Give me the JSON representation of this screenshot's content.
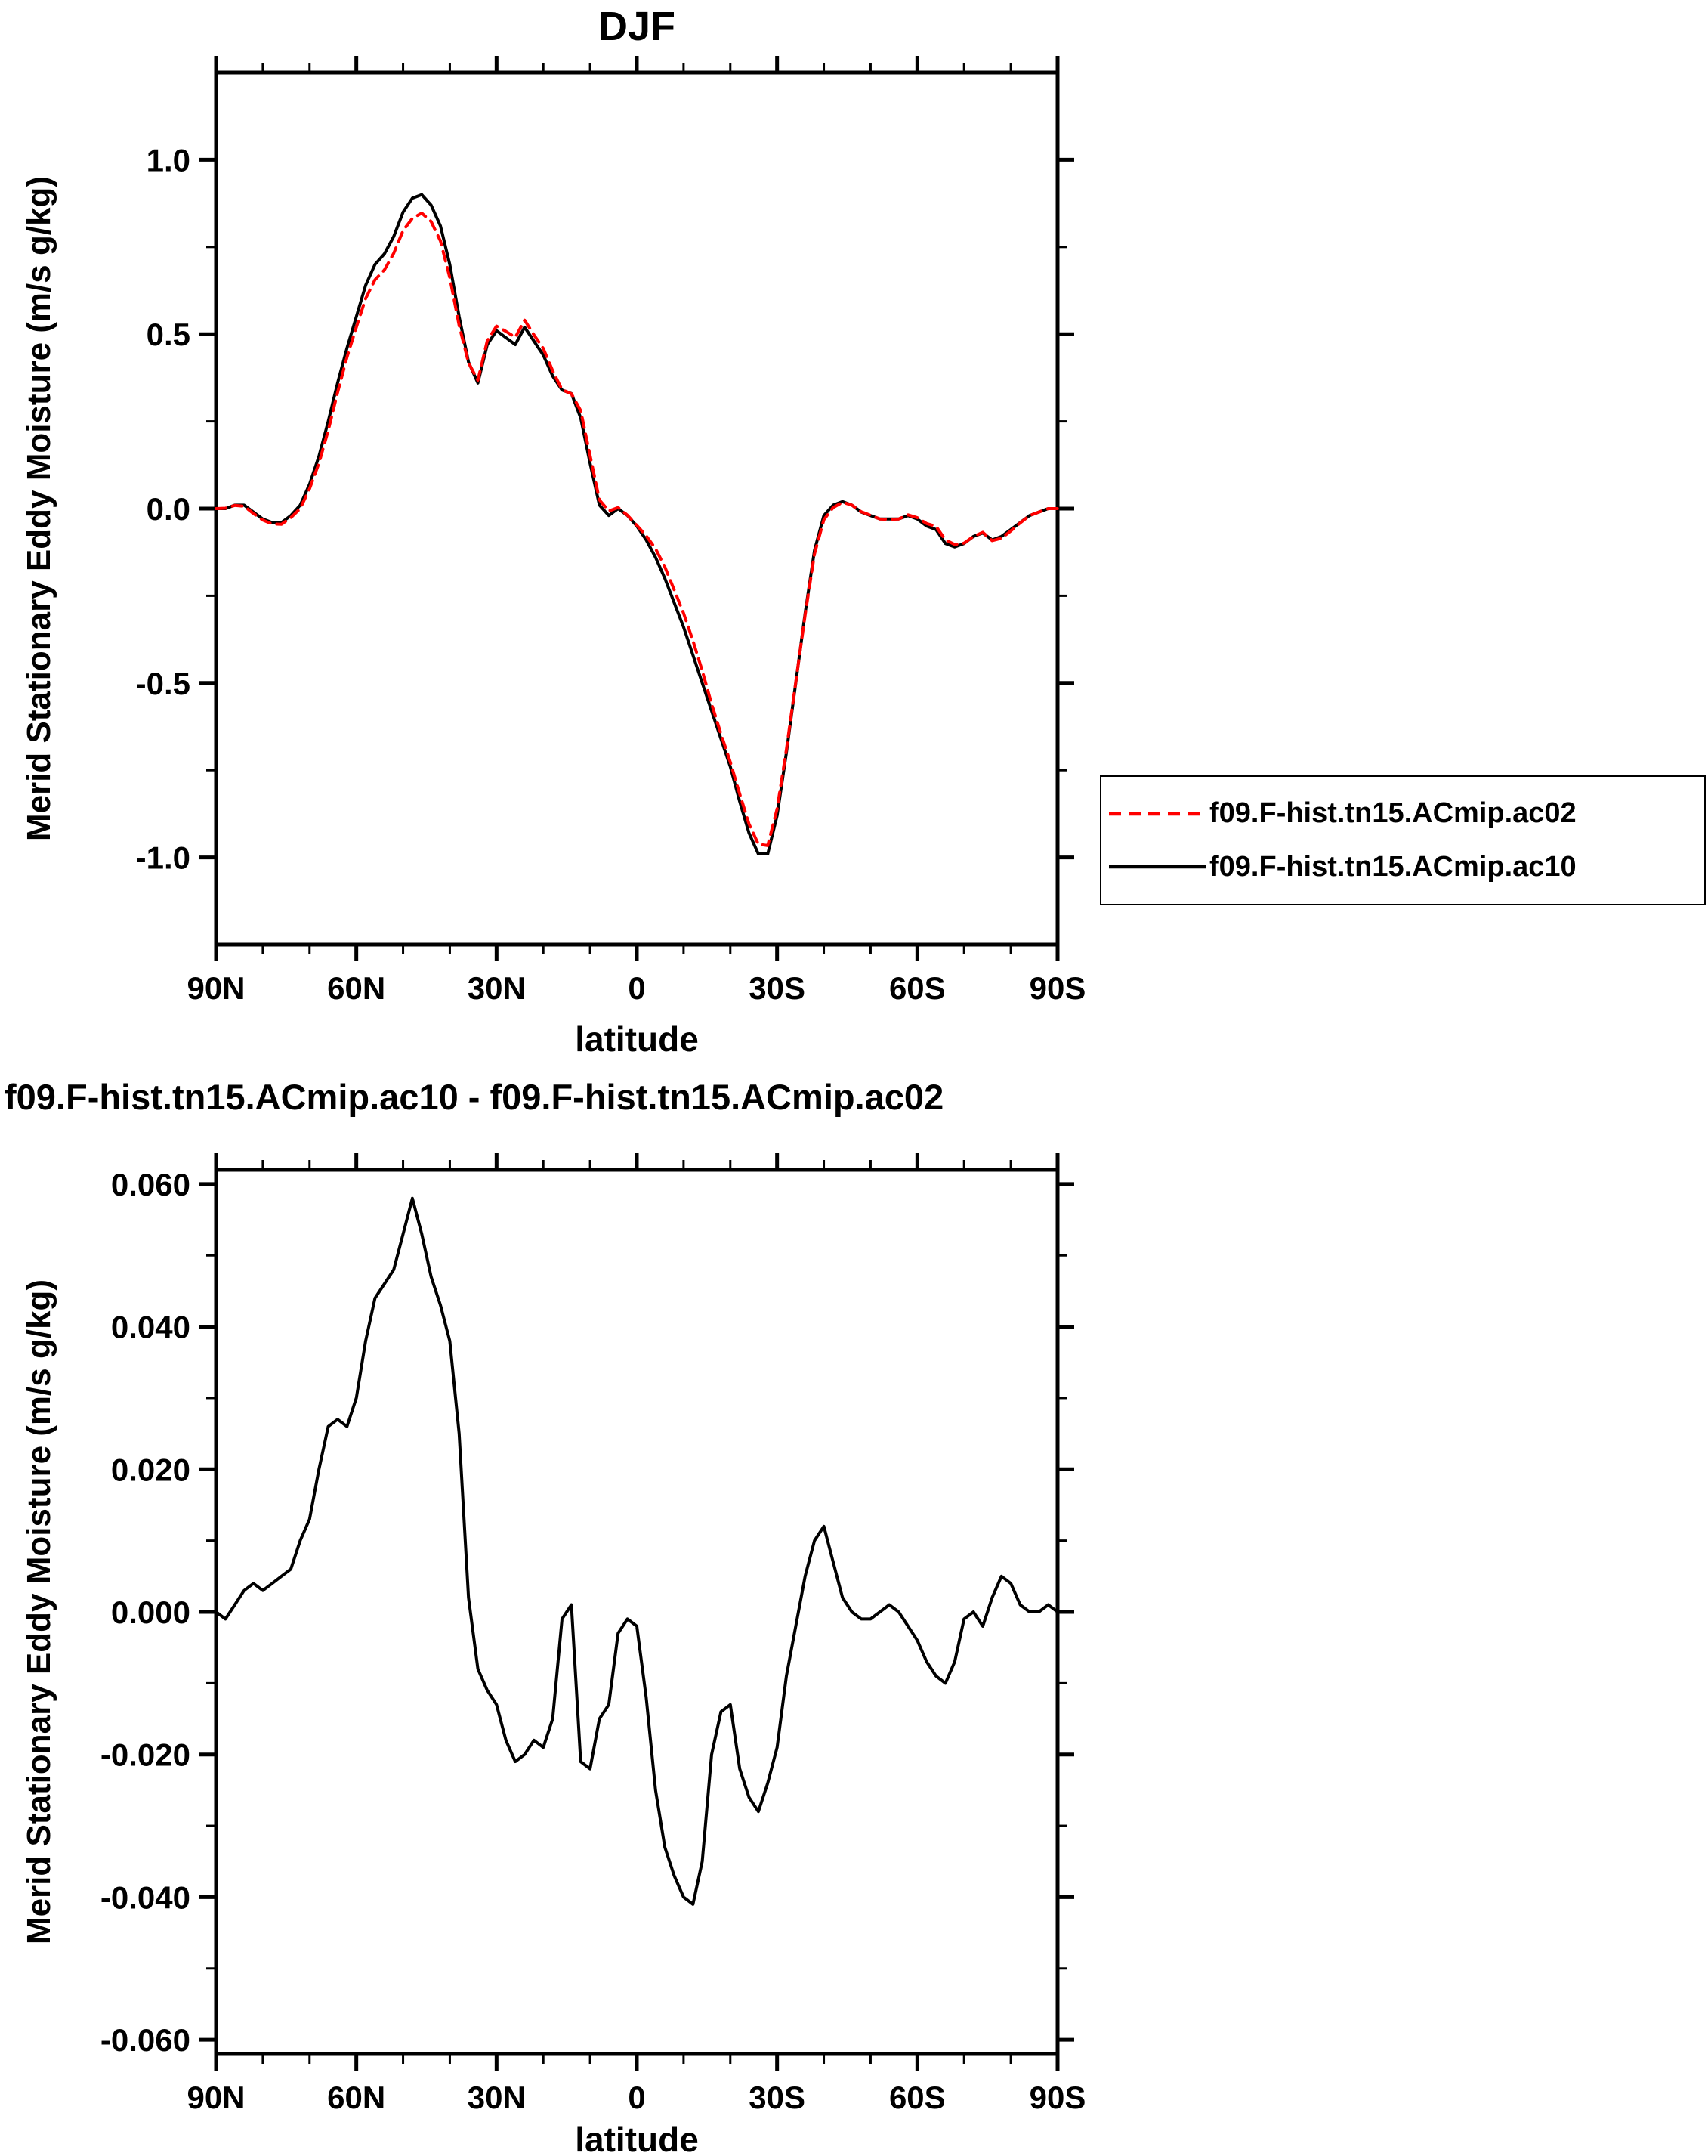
{
  "legend": {
    "entries": [
      {
        "label": "f09.F-hist.tn15.ACmip.ac02",
        "color": "#ff0000",
        "style": "dashed"
      },
      {
        "label": "f09.F-hist.tn15.ACmip.ac10",
        "color": "#000000",
        "style": "solid"
      }
    ]
  },
  "chart_data": [
    {
      "type": "line",
      "title": "DJF",
      "xlabel": "latitude",
      "ylabel": "Merid Stationary Eddy Moisture (m/s g/kg)",
      "xlim": [
        90,
        -90
      ],
      "ylim": [
        -1.25,
        1.25
      ],
      "xtick_values": [
        90,
        60,
        30,
        0,
        -30,
        -60,
        -90
      ],
      "xtick_labels": [
        "90N",
        "60N",
        "30N",
        "0",
        "30S",
        "60S",
        "90S"
      ],
      "ytick_values": [
        -1.0,
        -0.5,
        0.0,
        0.5,
        1.0
      ],
      "ytick_labels": [
        "-1.0",
        "-0.5",
        "0.0",
        "0.5",
        "1.0"
      ],
      "x_minor_step": 10,
      "y_minor_step": 0.25,
      "grid": false,
      "legend_position": "outside-right",
      "x_latitudes": [
        90,
        88,
        86,
        84,
        82,
        80,
        78,
        76,
        74,
        72,
        70,
        68,
        66,
        64,
        62,
        60,
        58,
        56,
        54,
        52,
        50,
        48,
        46,
        44,
        42,
        40,
        38,
        36,
        34,
        32,
        30,
        28,
        26,
        24,
        22,
        20,
        18,
        16,
        14,
        12,
        10,
        8,
        6,
        4,
        2,
        0,
        -2,
        -4,
        -6,
        -8,
        -10,
        -12,
        -14,
        -16,
        -18,
        -20,
        -22,
        -24,
        -26,
        -28,
        -30,
        -32,
        -34,
        -36,
        -38,
        -40,
        -42,
        -44,
        -46,
        -48,
        -50,
        -52,
        -54,
        -56,
        -58,
        -60,
        -62,
        -64,
        -66,
        -68,
        -70,
        -72,
        -74,
        -76,
        -78,
        -80,
        -82,
        -84,
        -86,
        -88,
        -90
      ],
      "series": [
        {
          "name": "f09.F-hist.tn15.ACmip.ac02",
          "color": "#ff0000",
          "style": "dashed",
          "values": [
            0.0,
            0.001,
            0.009,
            0.007,
            -0.014,
            -0.033,
            -0.044,
            -0.045,
            -0.026,
            0.0,
            0.057,
            0.13,
            0.224,
            0.333,
            0.434,
            0.52,
            0.602,
            0.656,
            0.684,
            0.732,
            0.797,
            0.832,
            0.847,
            0.823,
            0.767,
            0.662,
            0.525,
            0.418,
            0.368,
            0.481,
            0.523,
            0.508,
            0.491,
            0.54,
            0.498,
            0.459,
            0.395,
            0.341,
            0.329,
            0.281,
            0.152,
            0.025,
            -0.007,
            0.003,
            -0.019,
            -0.048,
            -0.078,
            -0.115,
            -0.167,
            -0.233,
            -0.3,
            -0.379,
            -0.465,
            -0.56,
            -0.646,
            -0.727,
            -0.818,
            -0.904,
            -0.962,
            -0.966,
            -0.861,
            -0.691,
            -0.498,
            -0.305,
            -0.13,
            -0.032,
            0.003,
            0.018,
            0.01,
            -0.009,
            -0.019,
            -0.03,
            -0.031,
            -0.03,
            -0.018,
            -0.026,
            -0.043,
            -0.051,
            -0.09,
            -0.103,
            -0.099,
            -0.08,
            -0.068,
            -0.092,
            -0.085,
            -0.064,
            -0.041,
            -0.02,
            -0.01,
            0.0,
            0.0
          ]
        },
        {
          "name": "f09.F-hist.tn15.ACmip.ac10",
          "color": "#000000",
          "style": "solid",
          "values": [
            0.0,
            0.0,
            0.01,
            0.01,
            -0.01,
            -0.03,
            -0.04,
            -0.04,
            -0.02,
            0.01,
            0.07,
            0.15,
            0.25,
            0.36,
            0.46,
            0.55,
            0.64,
            0.7,
            0.73,
            0.78,
            0.85,
            0.89,
            0.9,
            0.87,
            0.81,
            0.7,
            0.55,
            0.42,
            0.36,
            0.47,
            0.51,
            0.49,
            0.47,
            0.52,
            0.48,
            0.44,
            0.38,
            0.34,
            0.33,
            0.26,
            0.13,
            0.01,
            -0.02,
            0.0,
            -0.02,
            -0.05,
            -0.09,
            -0.14,
            -0.2,
            -0.27,
            -0.34,
            -0.42,
            -0.5,
            -0.58,
            -0.66,
            -0.74,
            -0.84,
            -0.93,
            -0.99,
            -0.99,
            -0.88,
            -0.7,
            -0.5,
            -0.3,
            -0.12,
            -0.02,
            0.01,
            0.02,
            0.01,
            -0.01,
            -0.02,
            -0.03,
            -0.03,
            -0.03,
            -0.02,
            -0.03,
            -0.05,
            -0.06,
            -0.1,
            -0.11,
            -0.1,
            -0.08,
            -0.07,
            -0.09,
            -0.08,
            -0.06,
            -0.04,
            -0.02,
            -0.01,
            0.0,
            0.0
          ]
        }
      ]
    },
    {
      "type": "line",
      "title": "f09.F-hist.tn15.ACmip.ac10 - f09.F-hist.tn15.ACmip.ac02",
      "xlabel": "latitude",
      "ylabel": "Merid Stationary Eddy Moisture (m/s g/kg)",
      "xlim": [
        90,
        -90
      ],
      "ylim": [
        -0.062,
        0.062
      ],
      "xtick_values": [
        90,
        60,
        30,
        0,
        -30,
        -60,
        -90
      ],
      "xtick_labels": [
        "90N",
        "60N",
        "30N",
        "0",
        "30S",
        "60S",
        "90S"
      ],
      "ytick_values": [
        -0.06,
        -0.04,
        -0.02,
        0.0,
        0.02,
        0.04,
        0.06
      ],
      "ytick_labels": [
        "-0.060",
        "-0.040",
        "-0.020",
        "0.000",
        "0.020",
        "0.040",
        "0.060"
      ],
      "x_minor_step": 10,
      "y_minor_step": 0.01,
      "grid": false,
      "legend_position": "none",
      "x_latitudes": [
        90,
        88,
        86,
        84,
        82,
        80,
        78,
        76,
        74,
        72,
        70,
        68,
        66,
        64,
        62,
        60,
        58,
        56,
        54,
        52,
        50,
        48,
        46,
        44,
        42,
        40,
        38,
        36,
        34,
        32,
        30,
        28,
        26,
        24,
        22,
        20,
        18,
        16,
        14,
        12,
        10,
        8,
        6,
        4,
        2,
        0,
        -2,
        -4,
        -6,
        -8,
        -10,
        -12,
        -14,
        -16,
        -18,
        -20,
        -22,
        -24,
        -26,
        -28,
        -30,
        -32,
        -34,
        -36,
        -38,
        -40,
        -42,
        -44,
        -46,
        -48,
        -50,
        -52,
        -54,
        -56,
        -58,
        -60,
        -62,
        -64,
        -66,
        -68,
        -70,
        -72,
        -74,
        -76,
        -78,
        -80,
        -82,
        -84,
        -86,
        -88,
        -90
      ],
      "series": [
        {
          "name": "f09.F-hist.tn15.ACmip.ac10 - f09.F-hist.tn15.ACmip.ac02",
          "color": "#000000",
          "style": "solid",
          "values": [
            0.0,
            -0.001,
            0.001,
            0.003,
            0.004,
            0.003,
            0.004,
            0.005,
            0.006,
            0.01,
            0.013,
            0.02,
            0.026,
            0.027,
            0.026,
            0.03,
            0.038,
            0.044,
            0.046,
            0.048,
            0.053,
            0.058,
            0.053,
            0.047,
            0.043,
            0.038,
            0.025,
            0.002,
            -0.008,
            -0.011,
            -0.013,
            -0.018,
            -0.021,
            -0.02,
            -0.018,
            -0.019,
            -0.015,
            -0.001,
            0.001,
            -0.021,
            -0.022,
            -0.015,
            -0.013,
            -0.003,
            -0.001,
            -0.002,
            -0.012,
            -0.025,
            -0.033,
            -0.037,
            -0.04,
            -0.041,
            -0.035,
            -0.02,
            -0.014,
            -0.013,
            -0.022,
            -0.026,
            -0.028,
            -0.024,
            -0.019,
            -0.009,
            -0.002,
            0.005,
            0.01,
            0.012,
            0.007,
            0.002,
            0.0,
            -0.001,
            -0.001,
            0.0,
            0.001,
            0.0,
            -0.002,
            -0.004,
            -0.007,
            -0.009,
            -0.01,
            -0.007,
            -0.001,
            0.0,
            -0.002,
            0.002,
            0.005,
            0.004,
            0.001,
            0.0,
            0.0,
            0.001,
            0.0
          ]
        }
      ]
    }
  ]
}
